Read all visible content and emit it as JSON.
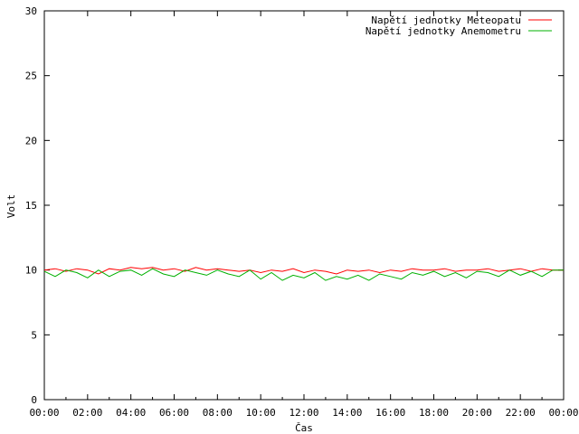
{
  "chart_data": {
    "type": "line",
    "xlabel": "Čas",
    "ylabel": "Volt",
    "xlim": [
      "00:00",
      "24:00"
    ],
    "ylim": [
      0,
      30
    ],
    "yticks": [
      0,
      5,
      10,
      15,
      20,
      25,
      30
    ],
    "xtick_labels": [
      "00:00",
      "02:00",
      "04:00",
      "06:00",
      "08:00",
      "10:00",
      "12:00",
      "14:00",
      "16:00",
      "18:00",
      "20:00",
      "22:00",
      "00:00"
    ],
    "grid": false,
    "legend_position": "top-right",
    "series": [
      {
        "name": "Napětí jednotky Meteopatu",
        "color": "#ff0000",
        "x_hours": [
          0,
          0.5,
          1,
          1.5,
          2,
          2.5,
          3,
          3.5,
          4,
          4.5,
          5,
          5.5,
          6,
          6.5,
          7,
          7.5,
          8,
          8.5,
          9,
          9.5,
          10,
          10.5,
          11,
          11.5,
          12,
          12.5,
          13,
          13.5,
          14,
          14.5,
          15,
          15.5,
          16,
          16.5,
          17,
          17.5,
          18,
          18.5,
          19,
          19.5,
          20,
          20.5,
          21,
          21.5,
          22,
          22.5,
          23,
          23.5,
          24
        ],
        "values": [
          10.0,
          10.1,
          9.9,
          10.1,
          10.0,
          9.7,
          10.1,
          10.0,
          10.2,
          10.1,
          10.2,
          10.0,
          10.1,
          9.9,
          10.2,
          10.0,
          10.1,
          10.0,
          9.9,
          10.0,
          9.8,
          10.0,
          9.9,
          10.1,
          9.8,
          10.0,
          9.9,
          9.7,
          10.0,
          9.9,
          10.0,
          9.8,
          10.0,
          9.9,
          10.1,
          10.0,
          10.0,
          10.1,
          9.9,
          10.0,
          10.0,
          10.1,
          9.9,
          10.0,
          10.1,
          9.9,
          10.1,
          10.0,
          10.0
        ]
      },
      {
        "name": "Napětí jednotky Anemometru",
        "color": "#00b000",
        "x_hours": [
          0,
          0.5,
          1,
          1.5,
          2,
          2.5,
          3,
          3.5,
          4,
          4.5,
          5,
          5.5,
          6,
          6.5,
          7,
          7.5,
          8,
          8.5,
          9,
          9.5,
          10,
          10.5,
          11,
          11.5,
          12,
          12.5,
          13,
          13.5,
          14,
          14.5,
          15,
          15.5,
          16,
          16.5,
          17,
          17.5,
          18,
          18.5,
          19,
          19.5,
          20,
          20.5,
          21,
          21.5,
          22,
          22.5,
          23,
          23.5,
          24
        ],
        "values": [
          9.9,
          9.5,
          10.0,
          9.8,
          9.4,
          10.0,
          9.5,
          9.9,
          10.0,
          9.6,
          10.1,
          9.7,
          9.5,
          10.0,
          9.8,
          9.6,
          10.0,
          9.7,
          9.5,
          10.0,
          9.3,
          9.8,
          9.2,
          9.6,
          9.4,
          9.8,
          9.2,
          9.5,
          9.3,
          9.6,
          9.2,
          9.7,
          9.5,
          9.3,
          9.8,
          9.6,
          9.9,
          9.5,
          9.8,
          9.4,
          9.9,
          9.8,
          9.5,
          10.0,
          9.6,
          9.9,
          9.5,
          10.0,
          10.0
        ]
      }
    ]
  }
}
